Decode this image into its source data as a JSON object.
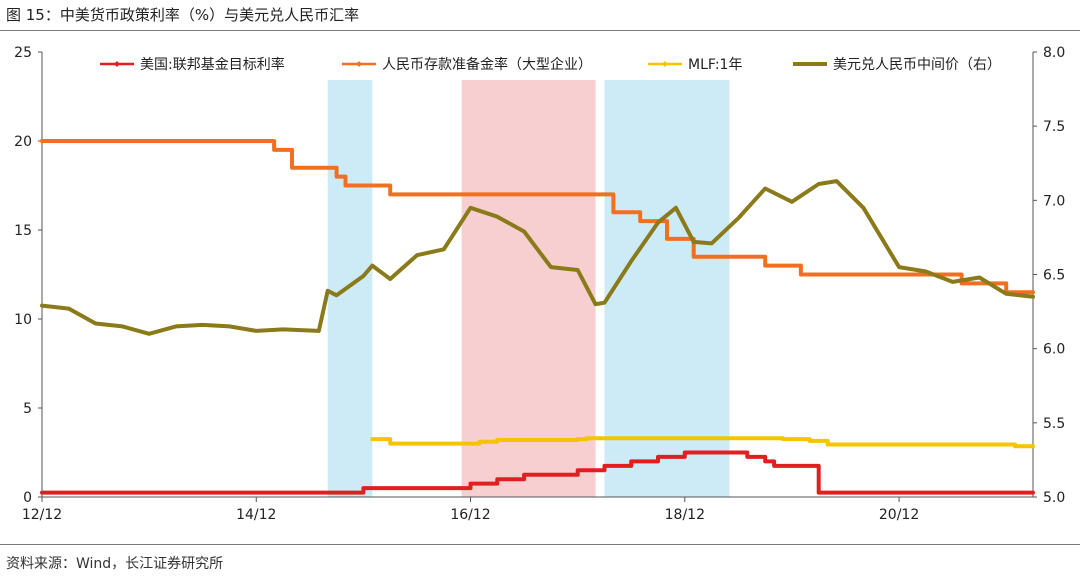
{
  "figure": {
    "title": "图 15：中美货币政策利率（%）与美元兑人民币汇率",
    "source": "资料来源：Wind，长江证券研究所"
  },
  "chart_data": {
    "type": "line",
    "x_ticks": [
      "12/12",
      "14/12",
      "16/12",
      "18/12",
      "20/12"
    ],
    "x_range": [
      "2012-12",
      "2022-03"
    ],
    "y_left_ticks": [
      "0",
      "5",
      "10",
      "15",
      "20",
      "25"
    ],
    "y_left_range": [
      0,
      25
    ],
    "y_right_ticks": [
      "5.0",
      "5.5",
      "6.0",
      "6.5",
      "7.0",
      "7.5",
      "8.0"
    ],
    "y_right_range": [
      5.0,
      8.0
    ],
    "grid": false,
    "legend_position": "top",
    "shaded_periods": [
      {
        "start": "2015-08",
        "end": "2016-01",
        "color": "#cdeaf7"
      },
      {
        "start": "2016-11",
        "end": "2018-02",
        "color": "#f7cfd0"
      },
      {
        "start": "2018-03",
        "end": "2019-05",
        "color": "#cdeaf7"
      }
    ],
    "series": [
      {
        "name": "美国:联邦基金目标利率",
        "color": "#e02020",
        "axis": "left",
        "shape": "step",
        "points": [
          [
            "2012-12",
            0.25
          ],
          [
            "2015-12",
            0.5
          ],
          [
            "2016-12",
            0.75
          ],
          [
            "2017-03",
            1.0
          ],
          [
            "2017-06",
            1.25
          ],
          [
            "2017-12",
            1.5
          ],
          [
            "2018-03",
            1.75
          ],
          [
            "2018-06",
            2.0
          ],
          [
            "2018-09",
            2.25
          ],
          [
            "2018-12",
            2.5
          ],
          [
            "2019-07",
            2.25
          ],
          [
            "2019-09",
            2.0
          ],
          [
            "2019-10",
            1.75
          ],
          [
            "2020-03",
            1.25
          ],
          [
            "2020-03",
            0.25
          ],
          [
            "2022-03",
            0.25
          ]
        ]
      },
      {
        "name": "人民币存款准备金率（大型企业）",
        "color": "#f07020",
        "axis": "left",
        "shape": "step",
        "points": [
          [
            "2012-12",
            20.0
          ],
          [
            "2015-02",
            19.5
          ],
          [
            "2015-04",
            18.5
          ],
          [
            "2015-09",
            18.0
          ],
          [
            "2015-10",
            17.5
          ],
          [
            "2016-03",
            17.0
          ],
          [
            "2018-04",
            16.0
          ],
          [
            "2018-07",
            15.5
          ],
          [
            "2018-10",
            14.5
          ],
          [
            "2019-01",
            13.5
          ],
          [
            "2019-09",
            13.0
          ],
          [
            "2020-01",
            12.5
          ],
          [
            "2021-07",
            12.0
          ],
          [
            "2021-12",
            11.5
          ],
          [
            "2022-03",
            11.5
          ]
        ]
      },
      {
        "name": "MLF:1年",
        "color": "#f5c400",
        "axis": "left",
        "shape": "step",
        "points": [
          [
            "2016-01",
            3.25
          ],
          [
            "2016-03",
            3.0
          ],
          [
            "2017-01",
            3.1
          ],
          [
            "2017-03",
            3.2
          ],
          [
            "2017-12",
            3.25
          ],
          [
            "2018-01",
            3.3
          ],
          [
            "2019-11",
            3.25
          ],
          [
            "2020-02",
            3.15
          ],
          [
            "2020-04",
            2.95
          ],
          [
            "2022-01",
            2.85
          ],
          [
            "2022-03",
            2.85
          ]
        ]
      },
      {
        "name": "美元兑人民币中间价（右）",
        "color": "#8a7a1a",
        "axis": "right",
        "shape": "line",
        "points": [
          [
            "2012-12",
            6.29
          ],
          [
            "2013-03",
            6.27
          ],
          [
            "2013-06",
            6.17
          ],
          [
            "2013-09",
            6.15
          ],
          [
            "2013-12",
            6.1
          ],
          [
            "2014-03",
            6.15
          ],
          [
            "2014-06",
            6.16
          ],
          [
            "2014-09",
            6.15
          ],
          [
            "2014-12",
            6.12
          ],
          [
            "2015-03",
            6.13
          ],
          [
            "2015-07",
            6.12
          ],
          [
            "2015-08",
            6.39
          ],
          [
            "2015-09",
            6.36
          ],
          [
            "2015-12",
            6.49
          ],
          [
            "2016-01",
            6.56
          ],
          [
            "2016-03",
            6.47
          ],
          [
            "2016-06",
            6.63
          ],
          [
            "2016-09",
            6.67
          ],
          [
            "2016-12",
            6.95
          ],
          [
            "2017-03",
            6.89
          ],
          [
            "2017-06",
            6.79
          ],
          [
            "2017-09",
            6.55
          ],
          [
            "2017-12",
            6.53
          ],
          [
            "2018-02",
            6.3
          ],
          [
            "2018-03",
            6.31
          ],
          [
            "2018-06",
            6.59
          ],
          [
            "2018-09",
            6.85
          ],
          [
            "2018-11",
            6.95
          ],
          [
            "2019-01",
            6.72
          ],
          [
            "2019-03",
            6.71
          ],
          [
            "2019-06",
            6.88
          ],
          [
            "2019-09",
            7.08
          ],
          [
            "2019-12",
            6.99
          ],
          [
            "2020-03",
            7.11
          ],
          [
            "2020-05",
            7.13
          ],
          [
            "2020-08",
            6.95
          ],
          [
            "2020-12",
            6.55
          ],
          [
            "2021-03",
            6.52
          ],
          [
            "2021-06",
            6.45
          ],
          [
            "2021-09",
            6.48
          ],
          [
            "2021-12",
            6.37
          ],
          [
            "2022-03",
            6.35
          ]
        ]
      }
    ]
  }
}
